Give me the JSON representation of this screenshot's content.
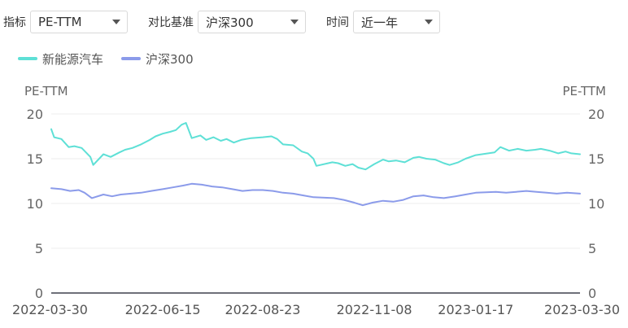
{
  "controls": {
    "indicator_label": "指标",
    "indicator_value": "PE-TTM",
    "compare_label": "对比基准",
    "compare_value": "沪深300",
    "time_label": "时间",
    "time_value": "近一年"
  },
  "colors": {
    "series_1": "#5ee0d6",
    "series_2": "#8b9bea",
    "grid": "#ececec",
    "axis": "#6e7079"
  },
  "chart_data": {
    "type": "line",
    "ylabel_left": "PE-TTM",
    "ylabel_right": "PE-TTM",
    "ylim": [
      0,
      20
    ],
    "yticks": [
      0,
      5,
      10,
      15,
      20
    ],
    "xlim": [
      "2022-03-30",
      "2023-03-30"
    ],
    "xticks": [
      "2022-03-30",
      "2022-06-15",
      "2022-08-23",
      "2022-11-08",
      "2023-01-17",
      "2023-03-30"
    ],
    "grid": true,
    "legend": "top-left",
    "series": [
      {
        "name": "新能源汽车",
        "points": [
          [
            "2022-03-30",
            18.3
          ],
          [
            "2022-04-01",
            17.4
          ],
          [
            "2022-04-06",
            17.2
          ],
          [
            "2022-04-11",
            16.3
          ],
          [
            "2022-04-15",
            16.4
          ],
          [
            "2022-04-20",
            16.2
          ],
          [
            "2022-04-26",
            15.2
          ],
          [
            "2022-04-28",
            14.3
          ],
          [
            "2022-05-05",
            15.5
          ],
          [
            "2022-05-10",
            15.2
          ],
          [
            "2022-05-16",
            15.7
          ],
          [
            "2022-05-20",
            16.0
          ],
          [
            "2022-05-25",
            16.2
          ],
          [
            "2022-05-31",
            16.6
          ],
          [
            "2022-06-06",
            17.1
          ],
          [
            "2022-06-10",
            17.5
          ],
          [
            "2022-06-15",
            17.8
          ],
          [
            "2022-06-20",
            18.0
          ],
          [
            "2022-06-24",
            18.2
          ],
          [
            "2022-06-28",
            18.8
          ],
          [
            "2022-07-01",
            19.0
          ],
          [
            "2022-07-05",
            17.3
          ],
          [
            "2022-07-11",
            17.6
          ],
          [
            "2022-07-15",
            17.1
          ],
          [
            "2022-07-20",
            17.4
          ],
          [
            "2022-07-25",
            17.0
          ],
          [
            "2022-07-29",
            17.2
          ],
          [
            "2022-08-03",
            16.8
          ],
          [
            "2022-08-08",
            17.1
          ],
          [
            "2022-08-15",
            17.3
          ],
          [
            "2022-08-23",
            17.4
          ],
          [
            "2022-08-29",
            17.5
          ],
          [
            "2022-09-02",
            17.2
          ],
          [
            "2022-09-06",
            16.6
          ],
          [
            "2022-09-13",
            16.5
          ],
          [
            "2022-09-19",
            15.8
          ],
          [
            "2022-09-23",
            15.6
          ],
          [
            "2022-09-27",
            15.0
          ],
          [
            "2022-09-29",
            14.2
          ],
          [
            "2022-10-10",
            14.6
          ],
          [
            "2022-10-14",
            14.5
          ],
          [
            "2022-10-19",
            14.2
          ],
          [
            "2022-10-24",
            14.4
          ],
          [
            "2022-10-28",
            14.0
          ],
          [
            "2022-11-02",
            13.8
          ],
          [
            "2022-11-08",
            14.4
          ],
          [
            "2022-11-14",
            14.9
          ],
          [
            "2022-11-18",
            14.7
          ],
          [
            "2022-11-23",
            14.8
          ],
          [
            "2022-11-29",
            14.6
          ],
          [
            "2022-12-05",
            15.1
          ],
          [
            "2022-12-09",
            15.2
          ],
          [
            "2022-12-14",
            15.0
          ],
          [
            "2022-12-20",
            14.9
          ],
          [
            "2022-12-26",
            14.5
          ],
          [
            "2022-12-30",
            14.3
          ],
          [
            "2023-01-05",
            14.6
          ],
          [
            "2023-01-10",
            15.0
          ],
          [
            "2023-01-17",
            15.4
          ],
          [
            "2023-01-30",
            15.7
          ],
          [
            "2023-02-03",
            16.3
          ],
          [
            "2023-02-09",
            15.9
          ],
          [
            "2023-02-15",
            16.1
          ],
          [
            "2023-02-21",
            15.9
          ],
          [
            "2023-02-27",
            16.0
          ],
          [
            "2023-03-03",
            16.1
          ],
          [
            "2023-03-09",
            15.9
          ],
          [
            "2023-03-15",
            15.6
          ],
          [
            "2023-03-20",
            15.8
          ],
          [
            "2023-03-24",
            15.6
          ],
          [
            "2023-03-30",
            15.5
          ]
        ]
      },
      {
        "name": "沪深300",
        "points": [
          [
            "2022-03-30",
            11.7
          ],
          [
            "2022-04-06",
            11.6
          ],
          [
            "2022-04-12",
            11.4
          ],
          [
            "2022-04-18",
            11.5
          ],
          [
            "2022-04-22",
            11.2
          ],
          [
            "2022-04-27",
            10.6
          ],
          [
            "2022-05-05",
            11.0
          ],
          [
            "2022-05-11",
            10.8
          ],
          [
            "2022-05-17",
            11.0
          ],
          [
            "2022-05-24",
            11.1
          ],
          [
            "2022-05-31",
            11.2
          ],
          [
            "2022-06-07",
            11.4
          ],
          [
            "2022-06-15",
            11.6
          ],
          [
            "2022-06-22",
            11.8
          ],
          [
            "2022-06-29",
            12.0
          ],
          [
            "2022-07-05",
            12.2
          ],
          [
            "2022-07-12",
            12.1
          ],
          [
            "2022-07-19",
            11.9
          ],
          [
            "2022-07-26",
            11.8
          ],
          [
            "2022-08-02",
            11.6
          ],
          [
            "2022-08-09",
            11.4
          ],
          [
            "2022-08-16",
            11.5
          ],
          [
            "2022-08-23",
            11.5
          ],
          [
            "2022-08-30",
            11.4
          ],
          [
            "2022-09-06",
            11.2
          ],
          [
            "2022-09-13",
            11.1
          ],
          [
            "2022-09-20",
            10.9
          ],
          [
            "2022-09-27",
            10.7
          ],
          [
            "2022-10-11",
            10.6
          ],
          [
            "2022-10-18",
            10.4
          ],
          [
            "2022-10-25",
            10.1
          ],
          [
            "2022-10-31",
            9.8
          ],
          [
            "2022-11-07",
            10.1
          ],
          [
            "2022-11-14",
            10.3
          ],
          [
            "2022-11-21",
            10.2
          ],
          [
            "2022-11-28",
            10.4
          ],
          [
            "2022-12-05",
            10.8
          ],
          [
            "2022-12-12",
            10.9
          ],
          [
            "2022-12-19",
            10.7
          ],
          [
            "2022-12-26",
            10.6
          ],
          [
            "2023-01-03",
            10.8
          ],
          [
            "2023-01-10",
            11.0
          ],
          [
            "2023-01-17",
            11.2
          ],
          [
            "2023-01-31",
            11.3
          ],
          [
            "2023-02-07",
            11.2
          ],
          [
            "2023-02-14",
            11.3
          ],
          [
            "2023-02-21",
            11.4
          ],
          [
            "2023-02-28",
            11.3
          ],
          [
            "2023-03-07",
            11.2
          ],
          [
            "2023-03-14",
            11.1
          ],
          [
            "2023-03-21",
            11.2
          ],
          [
            "2023-03-30",
            11.1
          ]
        ]
      }
    ]
  }
}
